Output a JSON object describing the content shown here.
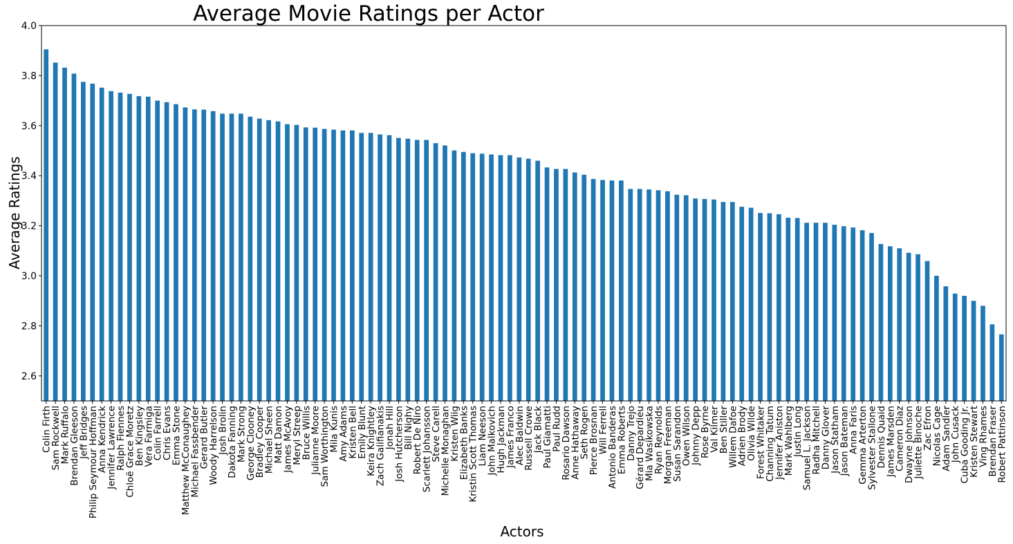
{
  "chart_data": {
    "type": "bar",
    "title": "Average Movie Ratings per Actor",
    "xlabel": "Actors",
    "ylabel": "Average Ratings",
    "ylim": [
      2.5,
      4.0
    ],
    "yticks": [
      "2.6",
      "2.8",
      "3.0",
      "3.2",
      "3.4",
      "3.6",
      "3.8",
      "4.0"
    ],
    "grid": false,
    "bar_color": "#1f77b4",
    "categories": [
      "Colin Firth",
      "Sam Rockwell",
      "Mark Ruffalo",
      "Brendan Gleeson",
      "Jeff Bridges",
      "Philip Seymour Hoffman",
      "Anna Kendrick",
      "Jennifer Lawrence",
      "Ralph Fiennes",
      "Chloë Grace Moretz",
      "Ben Kingsley",
      "Vera Farmiga",
      "Colin Farrell",
      "Chris Evans",
      "Emma Stone",
      "Matthew McConaughey",
      "Michael Fassbender",
      "Gerard Butler",
      "Woody Harrelson",
      "Josh Brolin",
      "Dakota Fanning",
      "Mark Strong",
      "George Clooney",
      "Bradley Cooper",
      "Michael Sheen",
      "Matt Damon",
      "James McAvoy",
      "Meryl Streep",
      "Bruce Willis",
      "Julianne Moore",
      "Sam Worthington",
      "Mila Kunis",
      "Amy Adams",
      "Kristen Bell",
      "Emily Blunt",
      "Keira Knightley",
      "Zach Galifianakis",
      "Jonah Hill",
      "Josh Hutcherson",
      "Bill Nighy",
      "Robert De Niro",
      "Scarlett Johansson",
      "Steve Carell",
      "Michelle Monaghan",
      "Kristen Wiig",
      "Elizabeth Banks",
      "Kristin Scott Thomas",
      "Liam Neeson",
      "John Malkovich",
      "Hugh Jackman",
      "James Franco",
      "Alec Baldwin",
      "Russell Crowe",
      "Jack Black",
      "Paul Giamatti",
      "Paul Rudd",
      "Rosario Dawson",
      "Anne Hathaway",
      "Seth Rogen",
      "Pierce Brosnan",
      "Will Ferrell",
      "Antonio Banderas",
      "Emma Roberts",
      "Danny Trejo",
      "Gérard Depardieu",
      "Mia Wasikowska",
      "Ryan Reynolds",
      "Morgan Freeman",
      "Susan Sarandon",
      "Owen Wilson",
      "Johnny Depp",
      "Rose Byrne",
      "Val Kilmer",
      "Ben Stiller",
      "Willem Dafoe",
      "Adrien Brody",
      "Olivia Wilde",
      "Forest Whitaker",
      "Channing Tatum",
      "Jennifer Aniston",
      "Mark Wahlberg",
      "Justin Long",
      "Samuel L. Jackson",
      "Radha Mitchell",
      "Danny Glover",
      "Jason Statham",
      "Jason Bateman",
      "Anna Faris",
      "Gemma Arterton",
      "Sylvester Stallone",
      "Dennis Quaid",
      "James Marsden",
      "Cameron Diaz",
      "Dwayne Johnson",
      "Juliette Binoche",
      "Zac Efron",
      "Nicolas Cage",
      "Adam Sandler",
      "John Cusack",
      "Cuba Gooding Jr.",
      "Kristen Stewart",
      "Ving Rhames",
      "Brendan Fraser",
      "Robert Pattinson"
    ],
    "values": [
      3.905,
      3.852,
      3.832,
      3.808,
      3.775,
      3.768,
      3.752,
      3.738,
      3.732,
      3.727,
      3.718,
      3.716,
      3.7,
      3.694,
      3.686,
      3.673,
      3.665,
      3.664,
      3.658,
      3.648,
      3.648,
      3.648,
      3.636,
      3.628,
      3.622,
      3.617,
      3.606,
      3.603,
      3.593,
      3.592,
      3.587,
      3.584,
      3.581,
      3.581,
      3.571,
      3.571,
      3.565,
      3.562,
      3.551,
      3.548,
      3.543,
      3.543,
      3.53,
      3.521,
      3.501,
      3.495,
      3.49,
      3.488,
      3.485,
      3.482,
      3.482,
      3.473,
      3.468,
      3.46,
      3.433,
      3.427,
      3.427,
      3.413,
      3.404,
      3.387,
      3.383,
      3.381,
      3.381,
      3.347,
      3.347,
      3.345,
      3.342,
      3.338,
      3.324,
      3.322,
      3.309,
      3.307,
      3.305,
      3.295,
      3.295,
      3.276,
      3.272,
      3.251,
      3.25,
      3.246,
      3.232,
      3.231,
      3.212,
      3.212,
      3.212,
      3.204,
      3.198,
      3.193,
      3.182,
      3.171,
      3.127,
      3.118,
      3.11,
      3.092,
      3.086,
      3.059,
      3.0,
      2.958,
      2.929,
      2.92,
      2.9,
      2.88,
      2.806,
      2.766
    ]
  }
}
